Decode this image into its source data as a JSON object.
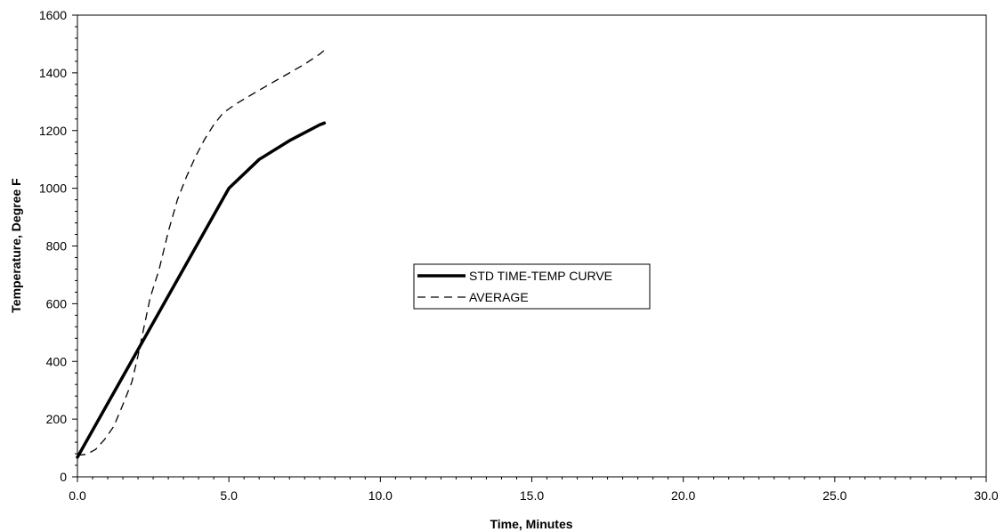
{
  "chart_data": {
    "type": "line",
    "title": "",
    "xlabel": "Time, Minutes",
    "ylabel": "Temperature, Degree F",
    "xlim": [
      0,
      30
    ],
    "ylim": [
      0,
      1600
    ],
    "x_ticks": [
      "0.0",
      "5.0",
      "10.0",
      "15.0",
      "20.0",
      "25.0",
      "30.0"
    ],
    "y_ticks": [
      "0",
      "200",
      "400",
      "600",
      "800",
      "1000",
      "1200",
      "1400",
      "1600"
    ],
    "grid": false,
    "legend_position": "center",
    "series": [
      {
        "name": "STD TIME-TEMP CURVE",
        "style": "solid-thick",
        "color": "#000000",
        "points": [
          [
            0,
            68
          ],
          [
            5,
            1000
          ],
          [
            6,
            1100
          ],
          [
            7,
            1165
          ],
          [
            8,
            1220
          ],
          [
            8.15,
            1226
          ]
        ]
      },
      {
        "name": "AVERAGE",
        "style": "dashed",
        "color": "#000000",
        "points": [
          [
            0,
            75
          ],
          [
            0.3,
            78
          ],
          [
            0.6,
            95
          ],
          [
            0.9,
            130
          ],
          [
            1.2,
            175
          ],
          [
            1.5,
            250
          ],
          [
            1.8,
            330
          ],
          [
            2.0,
            420
          ],
          [
            2.2,
            520
          ],
          [
            2.4,
            620
          ],
          [
            2.7,
            720
          ],
          [
            3.0,
            850
          ],
          [
            3.3,
            960
          ],
          [
            3.6,
            1040
          ],
          [
            3.9,
            1110
          ],
          [
            4.2,
            1170
          ],
          [
            4.5,
            1220
          ],
          [
            4.8,
            1260
          ],
          [
            5.2,
            1290
          ],
          [
            5.6,
            1315
          ],
          [
            6.0,
            1340
          ],
          [
            6.5,
            1370
          ],
          [
            7.0,
            1400
          ],
          [
            7.5,
            1430
          ],
          [
            8.0,
            1465
          ],
          [
            8.15,
            1478
          ]
        ]
      }
    ]
  }
}
